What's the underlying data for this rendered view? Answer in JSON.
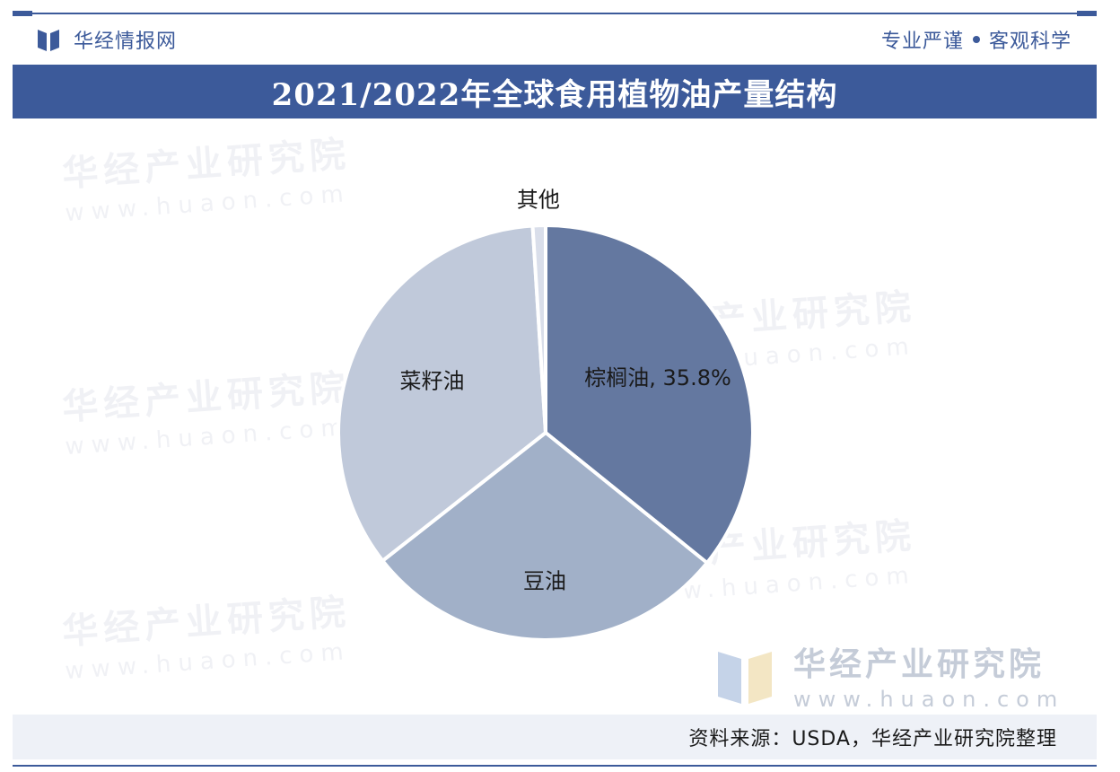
{
  "header": {
    "brand_name": "华经情报网",
    "slogan_left": "专业严谨",
    "slogan_right": "客观科学"
  },
  "title": "2021/2022年全球食用植物油产量结构",
  "watermark": {
    "name": "华经产业研究院",
    "url": "www.huaon.com"
  },
  "source": "资料来源：USDA，华经产业研究院整理",
  "colors": {
    "brand": "#3c5a9a",
    "palm": "#6478a0",
    "soy": "#a1b0c8",
    "rapeseed": "#c0c9da",
    "other": "#d9deea"
  },
  "chart_data": {
    "type": "pie",
    "title": "2021/2022年全球食用植物油产量结构",
    "slices": [
      {
        "label": "棕榈油",
        "value": 35.8,
        "display": "棕榈油, 35.8%",
        "color": "#6478a0"
      },
      {
        "label": "豆油",
        "value": 28.6,
        "display": "豆油",
        "color": "#a1b0c8"
      },
      {
        "label": "菜籽油",
        "value": 34.6,
        "display": "菜籽油",
        "color": "#c0c9da"
      },
      {
        "label": "其他",
        "value": 1.0,
        "display": "其他",
        "color": "#d9deea"
      }
    ]
  }
}
